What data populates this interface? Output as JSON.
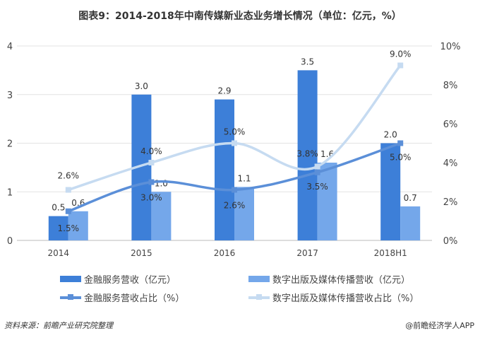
{
  "title": "图表9：2014-2018年中南传媒新业态业务增长情况（单位：亿元，%）",
  "source": "资料来源：前瞻产业研究院整理",
  "credit": "@前瞻经济学人APP",
  "chart_data": {
    "type": "bar+line",
    "categories": [
      "2014",
      "2015",
      "2016",
      "2017",
      "2018H1"
    ],
    "left_axis": {
      "ylim": [
        0,
        4
      ],
      "ticks": [
        "0",
        "1",
        "2",
        "3",
        "4"
      ]
    },
    "right_axis": {
      "ylim": [
        0,
        10
      ],
      "ticks": [
        "0%",
        "2%",
        "4%",
        "6%",
        "8%",
        "10%"
      ]
    },
    "grid": true,
    "legend_placement": "bottom",
    "series": [
      {
        "name": "金融服务营收（亿元）",
        "kind": "bar",
        "axis": "left",
        "color": "#3d7fd8",
        "values": [
          0.5,
          3.0,
          2.9,
          3.5,
          2.0
        ],
        "labels": [
          "0.5",
          "3.0",
          "2.9",
          "3.5",
          "2.0"
        ]
      },
      {
        "name": "数字出版及媒体传播营收（亿元）",
        "kind": "bar",
        "axis": "left",
        "color": "#74a7ea",
        "values": [
          0.6,
          1.0,
          1.1,
          1.6,
          0.7
        ],
        "labels": [
          "0.6",
          "1.0",
          "1.1",
          "1.6",
          "0.7"
        ]
      },
      {
        "name": "金融服务营收占比（%）",
        "kind": "line",
        "axis": "right",
        "color": "#5b8fd8",
        "values": [
          1.5,
          3.0,
          2.6,
          3.5,
          5.0
        ],
        "labels": [
          "1.5%",
          "3.0%",
          "2.6%",
          "3.5%",
          "5.0%"
        ]
      },
      {
        "name": "数字出版及媒体传播营收占比（%）",
        "kind": "line",
        "axis": "right",
        "color": "#c6dbf1",
        "values": [
          2.6,
          4.0,
          5.0,
          3.8,
          9.0
        ],
        "labels": [
          "2.6%",
          "4.0%",
          "5.0%",
          "3.8%",
          "9.0%"
        ]
      }
    ]
  }
}
